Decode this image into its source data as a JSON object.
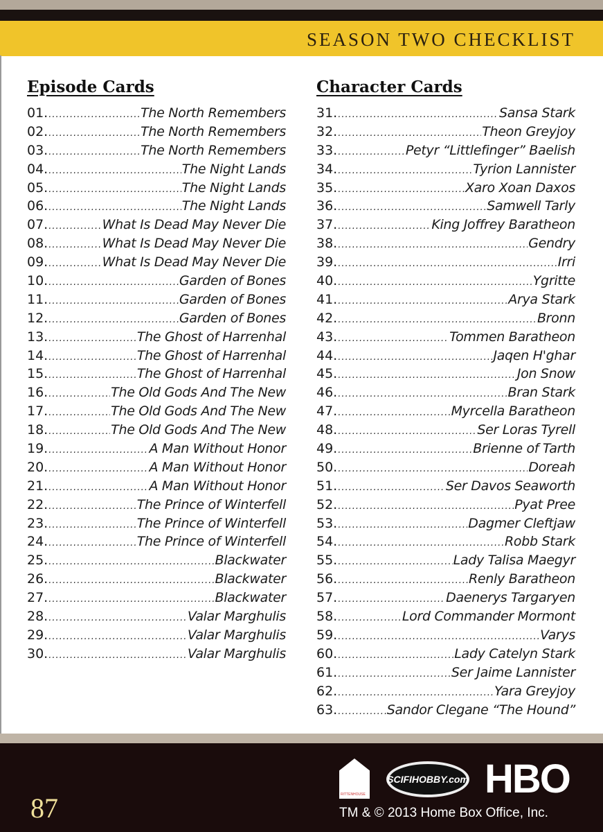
{
  "header": {
    "title": "SEASON TWO CHECKLIST"
  },
  "episode_cards": {
    "heading": "Episode Cards",
    "items": [
      {
        "num": "01.",
        "name": "The North Remembers"
      },
      {
        "num": "02.",
        "name": "The North Remembers"
      },
      {
        "num": "03.",
        "name": "The North Remembers"
      },
      {
        "num": "04.",
        "name": "The Night Lands"
      },
      {
        "num": "05.",
        "name": "The Night Lands"
      },
      {
        "num": "06.",
        "name": "The Night Lands"
      },
      {
        "num": "07.",
        "name": "What Is Dead May Never Die"
      },
      {
        "num": "08.",
        "name": "What Is Dead May Never Die"
      },
      {
        "num": "09.",
        "name": "What Is Dead May Never Die"
      },
      {
        "num": "10.",
        "name": "Garden of Bones"
      },
      {
        "num": "11.",
        "name": "Garden of Bones"
      },
      {
        "num": "12.",
        "name": "Garden of Bones"
      },
      {
        "num": "13.",
        "name": "The Ghost of Harrenhal"
      },
      {
        "num": "14.",
        "name": "The Ghost of Harrenhal"
      },
      {
        "num": "15.",
        "name": "The Ghost of Harrenhal"
      },
      {
        "num": "16.",
        "name": "The Old Gods And The New"
      },
      {
        "num": "17.",
        "name": "The Old Gods And The New"
      },
      {
        "num": "18.",
        "name": "The Old Gods And The New"
      },
      {
        "num": "19.",
        "name": "A Man Without Honor"
      },
      {
        "num": "20.",
        "name": "A Man Without Honor"
      },
      {
        "num": "21.",
        "name": "A Man Without Honor"
      },
      {
        "num": "22.",
        "name": "The Prince of Winterfell"
      },
      {
        "num": "23.",
        "name": "The Prince of Winterfell"
      },
      {
        "num": "24.",
        "name": "The Prince of Winterfell"
      },
      {
        "num": "25.",
        "name": "Blackwater"
      },
      {
        "num": "26.",
        "name": "Blackwater"
      },
      {
        "num": "27.",
        "name": "Blackwater"
      },
      {
        "num": "28.",
        "name": "Valar Marghulis"
      },
      {
        "num": "29.",
        "name": "Valar Marghulis"
      },
      {
        "num": "30.",
        "name": "Valar Marghulis"
      }
    ]
  },
  "character_cards": {
    "heading": "Character Cards",
    "items": [
      {
        "num": "31.",
        "name": "Sansa Stark"
      },
      {
        "num": "32.",
        "name": "Theon Greyjoy"
      },
      {
        "num": "33.",
        "name": "Petyr “Littlefinger” Baelish"
      },
      {
        "num": "34.",
        "name": "Tyrion Lannister"
      },
      {
        "num": "35.",
        "name": "Xaro Xoan Daxos"
      },
      {
        "num": "36.",
        "name": "Samwell Tarly"
      },
      {
        "num": "37.",
        "name": "King Joffrey Baratheon"
      },
      {
        "num": "38.",
        "name": "Gendry"
      },
      {
        "num": "39.",
        "name": "Irri"
      },
      {
        "num": "40.",
        "name": "Ygritte"
      },
      {
        "num": "41.",
        "name": "Arya Stark"
      },
      {
        "num": "42.",
        "name": "Bronn"
      },
      {
        "num": "43.",
        "name": "Tommen Baratheon"
      },
      {
        "num": "44.",
        "name": "Jaqen H'ghar"
      },
      {
        "num": "45.",
        "name": "Jon Snow"
      },
      {
        "num": "46.",
        "name": "Bran Stark"
      },
      {
        "num": "47.",
        "name": "Myrcella Baratheon"
      },
      {
        "num": "48.",
        "name": "Ser Loras Tyrell"
      },
      {
        "num": "49.",
        "name": "Brienne of Tarth"
      },
      {
        "num": "50.",
        "name": "Doreah"
      },
      {
        "num": "51.",
        "name": "Ser Davos Seaworth"
      },
      {
        "num": "52.",
        "name": "Pyat Pree"
      },
      {
        "num": "53.",
        "name": "Dagmer Cleftjaw"
      },
      {
        "num": "54.",
        "name": "Robb Stark"
      },
      {
        "num": "55.",
        "name": "Lady Talisa Maegyr"
      },
      {
        "num": "56.",
        "name": "Renly Baratheon"
      },
      {
        "num": "57.",
        "name": "Daenerys Targaryen"
      },
      {
        "num": "58.",
        "name": "Lord Commander Mormont"
      },
      {
        "num": "59.",
        "name": "Varys"
      },
      {
        "num": "60.",
        "name": "Lady Catelyn Stark"
      },
      {
        "num": "61.",
        "name": "Ser Jaime Lannister"
      },
      {
        "num": "62.",
        "name": "Yara Greyjoy"
      },
      {
        "num": "63.",
        "name": "Sandor Clegane “The Hound”"
      }
    ]
  },
  "footer": {
    "card_number": "87",
    "logos": {
      "rittenhouse": "RITTENHOUSE ARCHIVES LTD",
      "scifihobby": "SCIFIHOBBY.com",
      "hbo": "HBO"
    },
    "copyright": "TM & © 2013 Home Box Office, Inc."
  },
  "colors": {
    "header_band": "#f0c42a",
    "footer_bg": "#1a0c0c",
    "card_number": "#f0e09a"
  }
}
